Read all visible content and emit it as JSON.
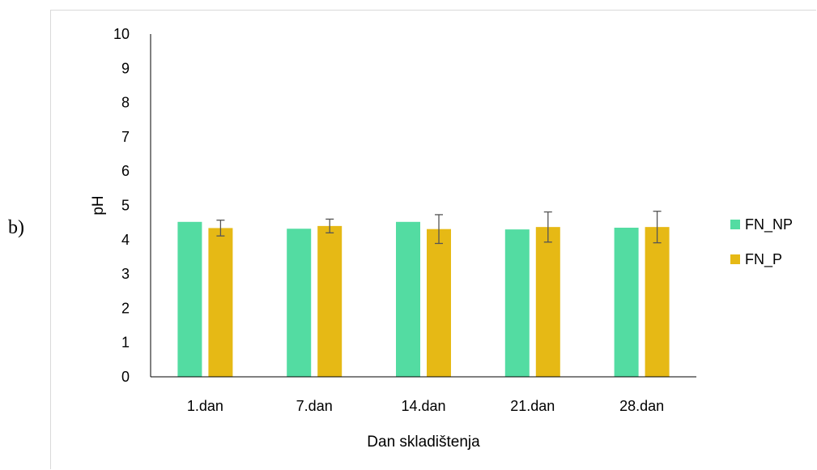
{
  "panel_label": "b)",
  "chart_data": {
    "type": "bar",
    "title": "",
    "xlabel": "Dan skladištenja",
    "ylabel": "pH",
    "ylim": [
      0,
      10
    ],
    "yticks": [
      0,
      1,
      2,
      3,
      4,
      5,
      6,
      7,
      8,
      9,
      10
    ],
    "categories": [
      "1.dan",
      "7.dan",
      "14.dan",
      "21.dan",
      "28.dan"
    ],
    "series": [
      {
        "name": "FN_NP",
        "color": "#53dca2",
        "values": [
          4.52,
          4.32,
          4.52,
          4.3,
          4.35
        ],
        "errors": [
          0,
          0,
          0,
          0,
          0
        ]
      },
      {
        "name": "FN_P",
        "color": "#e6b915",
        "values": [
          4.34,
          4.4,
          4.31,
          4.37,
          4.37
        ],
        "errors": [
          0.23,
          0.2,
          0.42,
          0.44,
          0.46
        ]
      }
    ],
    "legend_position": "right",
    "grid": false
  }
}
